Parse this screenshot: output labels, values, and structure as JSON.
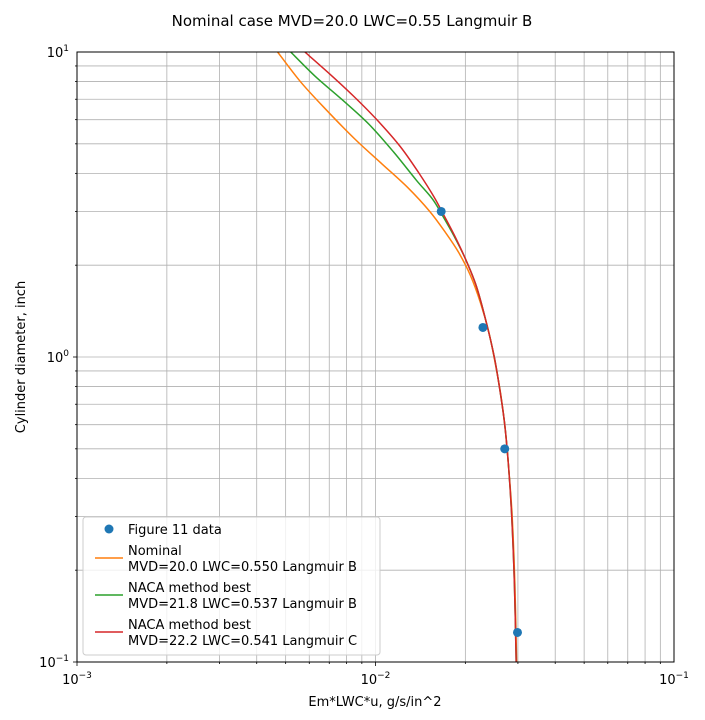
{
  "chart_data": {
    "type": "line",
    "title": "Nominal case MVD=20.0 LWC=0.55 Langmuir B",
    "xlabel": "Em*LWC*u, g/s/in^2",
    "ylabel": "Cylinder diameter, inch",
    "xscale": "log",
    "yscale": "log",
    "xlim": [
      0.001,
      0.1
    ],
    "ylim": [
      0.1,
      10
    ],
    "grid": true,
    "grid_minor": true,
    "legend_position": "lower-left",
    "x_ticks": [
      {
        "value": 0.001,
        "base": "10",
        "exp": "−3"
      },
      {
        "value": 0.01,
        "base": "10",
        "exp": "−2"
      },
      {
        "value": 0.1,
        "base": "10",
        "exp": "−1"
      }
    ],
    "y_ticks": [
      {
        "value": 0.1,
        "base": "10",
        "exp": "−1"
      },
      {
        "value": 1,
        "base": "10",
        "exp": "0"
      },
      {
        "value": 10,
        "base": "10",
        "exp": "1"
      }
    ],
    "series": [
      {
        "name": "Figure 11 data",
        "kind": "scatter",
        "color": "#1f77b4",
        "x": [
          0.0166,
          0.0229,
          0.0271,
          0.0299
        ],
        "y": [
          3.0,
          1.25,
          0.5,
          0.125
        ]
      },
      {
        "name": "Nominal",
        "name_line2": "MVD=20.0 LWC=0.550 Langmuir B",
        "kind": "line",
        "color": "#ff7f0e",
        "x": [
          0.0047,
          0.0056,
          0.0068,
          0.0085,
          0.0105,
          0.0128,
          0.0152,
          0.0172,
          0.019,
          0.0208,
          0.0225,
          0.024,
          0.0252,
          0.0263,
          0.0272,
          0.028,
          0.0287,
          0.0293,
          0.0297
        ],
        "y": [
          10,
          8,
          6.5,
          5.2,
          4.3,
          3.6,
          3.0,
          2.55,
          2.2,
          1.85,
          1.5,
          1.2,
          0.95,
          0.75,
          0.58,
          0.42,
          0.3,
          0.18,
          0.1
        ]
      },
      {
        "name": "NACA method best",
        "name_line2": "MVD=21.8 LWC=0.537 Langmuir B",
        "kind": "line",
        "color": "#2ca02c",
        "x": [
          0.0052,
          0.0063,
          0.0077,
          0.0095,
          0.0115,
          0.0137,
          0.0155,
          0.0168,
          0.0183,
          0.02,
          0.0218,
          0.0235,
          0.025,
          0.0261,
          0.0271,
          0.0279,
          0.0286,
          0.0292,
          0.0296
        ],
        "y": [
          10,
          8.3,
          7.0,
          5.8,
          4.7,
          3.8,
          3.3,
          2.9,
          2.5,
          2.1,
          1.7,
          1.3,
          1.0,
          0.78,
          0.6,
          0.44,
          0.3,
          0.18,
          0.1
        ]
      },
      {
        "name": "NACA method best",
        "name_line2": "MVD=22.2 LWC=0.541 Langmuir C",
        "kind": "line",
        "color": "#d62728",
        "x": [
          0.0058,
          0.007,
          0.0084,
          0.0101,
          0.0121,
          0.014,
          0.0157,
          0.017,
          0.0184,
          0.02,
          0.0218,
          0.0235,
          0.025,
          0.0261,
          0.0271,
          0.0279,
          0.0286,
          0.0292,
          0.0296
        ],
        "y": [
          10,
          8.5,
          7.2,
          6.0,
          4.9,
          4.0,
          3.35,
          2.9,
          2.5,
          2.1,
          1.7,
          1.3,
          1.0,
          0.78,
          0.6,
          0.44,
          0.3,
          0.18,
          0.1
        ]
      }
    ]
  }
}
